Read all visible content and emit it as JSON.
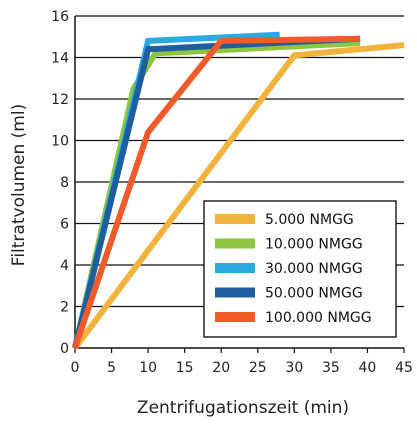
{
  "chart_data": {
    "type": "line",
    "title": "",
    "xlabel": "Zentrifugationszeit (min)",
    "ylabel": "Filtratvolumen (ml)",
    "xlim": [
      0,
      45
    ],
    "ylim": [
      0,
      16
    ],
    "xticks": [
      0,
      5,
      10,
      15,
      20,
      25,
      30,
      35,
      40,
      45
    ],
    "yticks": [
      0,
      2,
      4,
      6,
      8,
      10,
      12,
      14,
      16
    ],
    "grid": "horizontal",
    "legend_position": "bottom-right",
    "series": [
      {
        "name": "5.000 NMGG",
        "color": "#F2B33D",
        "points": [
          [
            0,
            0
          ],
          [
            30,
            14.1
          ],
          [
            45,
            14.6
          ]
        ]
      },
      {
        "name": "10.000 NMGG",
        "color": "#8DC63F",
        "points": [
          [
            0,
            0
          ],
          [
            8,
            12.5
          ],
          [
            11,
            14.2
          ],
          [
            39,
            14.7
          ]
        ]
      },
      {
        "name": "30.000 NMGG",
        "color": "#29ABE2",
        "points": [
          [
            0,
            0
          ],
          [
            10,
            14.8
          ],
          [
            28,
            15.1
          ]
        ]
      },
      {
        "name": "50.000 NMGG",
        "color": "#1F5E9E",
        "points": [
          [
            0,
            0
          ],
          [
            10,
            14.4
          ],
          [
            39,
            14.9
          ]
        ]
      },
      {
        "name": "100.000 NMGG",
        "color": "#F15A29",
        "points": [
          [
            0,
            0
          ],
          [
            10,
            10.4
          ],
          [
            20,
            14.8
          ],
          [
            39,
            14.9
          ]
        ]
      }
    ]
  }
}
